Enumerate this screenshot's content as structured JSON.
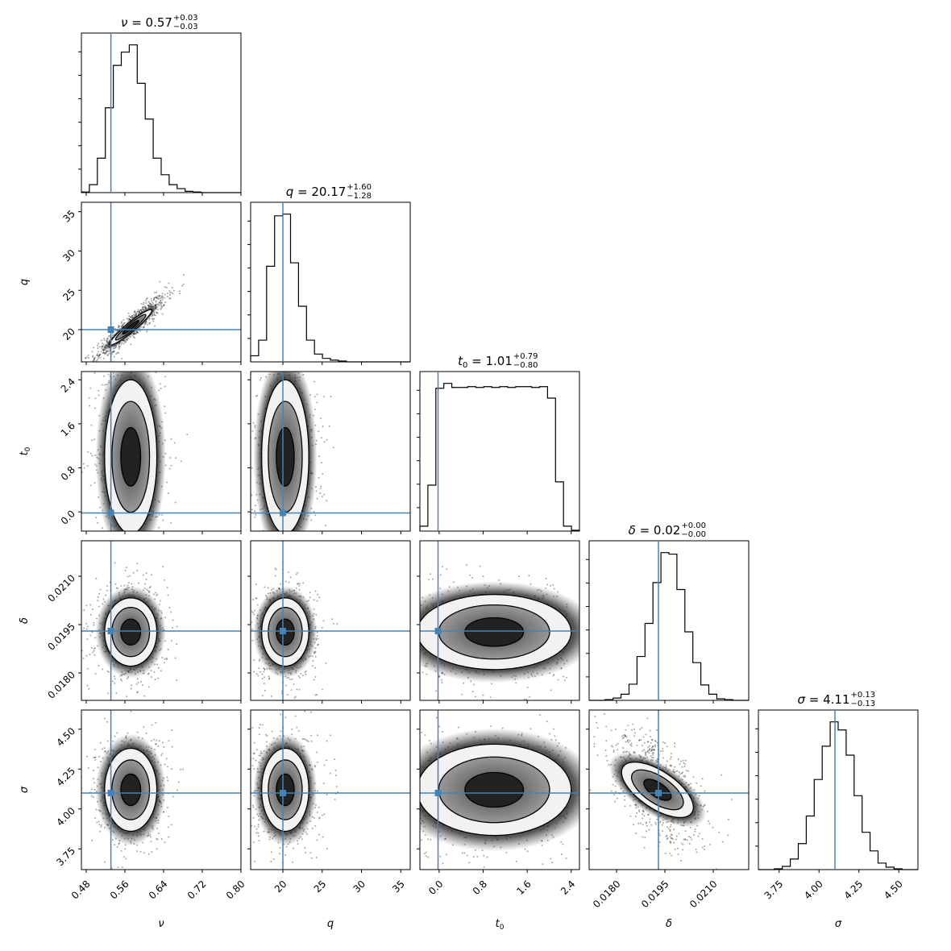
{
  "chart_data": {
    "type": "corner",
    "parameters": [
      {
        "id": "nu",
        "symbol": "ν",
        "axis_label": "ν",
        "sub": "",
        "title": {
          "value": "0.57",
          "plus": "+0.03",
          "minus": "−0.03"
        },
        "range": [
          0.47,
          0.8
        ],
        "ticks": [
          0.48,
          0.56,
          0.64,
          0.72,
          0.8
        ],
        "tick_labels": [
          "0.48",
          "0.56",
          "0.64",
          "0.72",
          "0.80"
        ],
        "truth": 0.531,
        "mode": 0.572,
        "sd": 0.027
      },
      {
        "id": "q",
        "symbol": "q",
        "axis_label": "q",
        "sub": "",
        "title": {
          "value": "20.17",
          "plus": "+1.60",
          "minus": "−1.28"
        },
        "range": [
          15.9,
          36.2
        ],
        "ticks": [
          20,
          25,
          30,
          35
        ],
        "tick_labels": [
          "20",
          "25",
          "30",
          "35"
        ],
        "truth": 20.0,
        "mode": 20.3,
        "sd": 1.5
      },
      {
        "id": "t0",
        "symbol": "t",
        "axis_label": "t",
        "sub": "0",
        "title": {
          "value": "1.01",
          "plus": "+0.79",
          "minus": "−0.80"
        },
        "range": [
          -0.35,
          2.55
        ],
        "ticks": [
          0.0,
          0.8,
          1.6,
          2.4
        ],
        "tick_labels": [
          "0.0",
          "0.8",
          "1.6",
          "2.4"
        ],
        "truth": -0.02,
        "mode": 1.0,
        "sd": 0.7
      },
      {
        "id": "delta",
        "symbol": "δ",
        "axis_label": "δ",
        "sub": "",
        "title": {
          "value": "0.02",
          "plus": "+0.00",
          "minus": "−0.00"
        },
        "range": [
          0.01715,
          0.0221
        ],
        "ticks": [
          0.018,
          0.0195,
          0.021
        ],
        "tick_labels": [
          "0.0180",
          "0.0195",
          "0.0210"
        ],
        "truth": 0.0193,
        "mode": 0.01927,
        "sd": 0.00053
      },
      {
        "id": "sigma",
        "symbol": "σ",
        "axis_label": "σ",
        "sub": "",
        "title": {
          "value": "4.11",
          "plus": "+0.13",
          "minus": "−0.13"
        },
        "range": [
          3.62,
          4.62
        ],
        "ticks": [
          3.75,
          4.0,
          4.25,
          4.5
        ],
        "tick_labels": [
          "3.75",
          "4.00",
          "4.25",
          "4.50"
        ],
        "truth": 4.1,
        "mode": 4.12,
        "sd": 0.13
      }
    ],
    "histograms": [
      {
        "param": "nu",
        "edges_range": [
          0.47,
          0.8
        ],
        "counts": [
          0.1,
          1.2,
          5.2,
          12.8,
          19.2,
          21.2,
          22.3,
          16.5,
          11.1,
          5.2,
          2.7,
          1.2,
          0.6,
          0.2,
          0.1,
          0,
          0,
          0,
          0,
          0
        ]
      },
      {
        "param": "q",
        "edges_range": [
          15.9,
          36.2
        ],
        "counts": [
          0.7,
          2.5,
          11.0,
          16.8,
          17.0,
          11.4,
          6.4,
          2.5,
          0.9,
          0.4,
          0.2,
          0.1,
          0,
          0,
          0,
          0,
          0,
          0,
          0,
          0
        ]
      },
      {
        "param": "t0",
        "edges_range": [
          -0.35,
          2.55
        ],
        "counts": [
          0.3,
          2.8,
          8.7,
          9.0,
          8.75,
          8.75,
          8.8,
          8.75,
          8.8,
          8.75,
          8.8,
          8.75,
          8.8,
          8.8,
          8.75,
          8.8,
          8.1,
          3.0,
          0.3,
          0.05
        ]
      },
      {
        "param": "delta",
        "edges_range": [
          0.01715,
          0.0221
        ],
        "counts": [
          0,
          0,
          0.1,
          0.3,
          0.8,
          2.1,
          5.7,
          10.0,
          15.3,
          19.2,
          19.0,
          14.4,
          8.9,
          4.9,
          2.0,
          0.8,
          0.2,
          0.1,
          0,
          0
        ]
      },
      {
        "param": "sigma",
        "edges_range": [
          3.62,
          4.62
        ],
        "counts": [
          0,
          0,
          0.1,
          0.4,
          1.3,
          3.2,
          6.6,
          11.1,
          15.2,
          18.2,
          17.2,
          14.1,
          9.1,
          4.6,
          2.3,
          0.8,
          0.3,
          0.1,
          0,
          0
        ]
      }
    ],
    "correlations": {
      "q|nu": 0.92,
      "sigma|delta": -0.55
    }
  }
}
